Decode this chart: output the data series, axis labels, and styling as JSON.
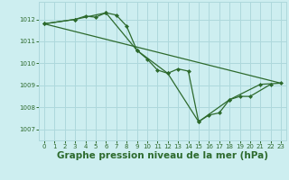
{
  "background_color": "#cdeef0",
  "grid_color": "#aed8dc",
  "line_color": "#2d6a2d",
  "xlabel": "Graphe pression niveau de la mer (hPa)",
  "xlabel_fontsize": 7.5,
  "xlim": [
    -0.5,
    23.5
  ],
  "ylim": [
    1006.5,
    1012.8
  ],
  "yticks": [
    1007,
    1008,
    1009,
    1010,
    1011,
    1012
  ],
  "xticks": [
    0,
    1,
    2,
    3,
    4,
    5,
    6,
    7,
    8,
    9,
    10,
    11,
    12,
    13,
    14,
    15,
    16,
    17,
    18,
    19,
    20,
    21,
    22,
    23
  ],
  "series": [
    {
      "x": [
        0,
        3,
        4,
        5,
        6,
        7,
        8,
        9,
        10,
        11,
        12,
        13,
        14,
        15,
        16,
        17,
        18,
        19,
        20,
        22
      ],
      "y": [
        1011.8,
        1012.0,
        1012.15,
        1012.1,
        1012.3,
        1012.2,
        1011.7,
        1010.6,
        1010.2,
        1009.7,
        1009.55,
        1009.75,
        1009.65,
        1007.35,
        1007.65,
        1007.75,
        1008.35,
        1008.5,
        1008.5,
        1009.05
      ],
      "marker": "D",
      "markersize": 2.0,
      "linewidth": 0.9
    },
    {
      "x": [
        0,
        3,
        6,
        9,
        12,
        15,
        18,
        21,
        23
      ],
      "y": [
        1011.8,
        1012.0,
        1012.3,
        1010.6,
        1009.55,
        1007.35,
        1008.35,
        1009.05,
        1009.1
      ],
      "marker": "D",
      "markersize": 2.0,
      "linewidth": 0.9
    },
    {
      "x": [
        0,
        23
      ],
      "y": [
        1011.8,
        1009.1
      ],
      "marker": null,
      "markersize": 0,
      "linewidth": 0.9
    }
  ]
}
